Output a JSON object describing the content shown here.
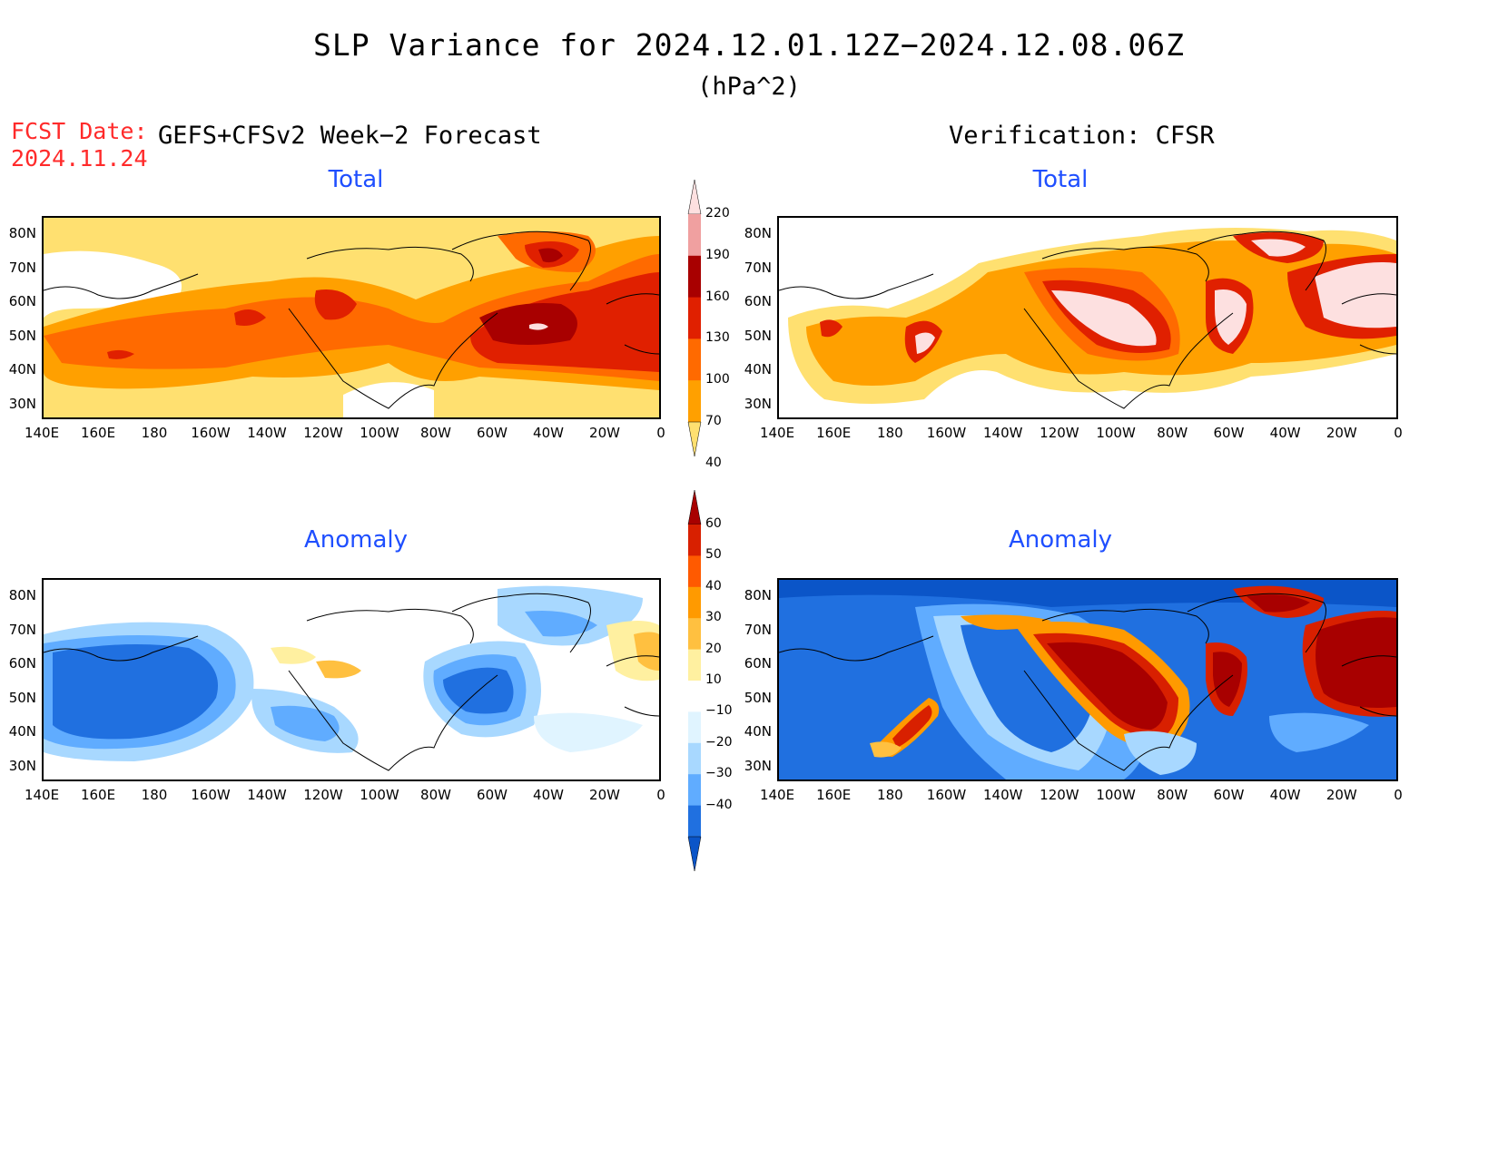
{
  "title": "SLP Variance for 2024.12.01.12Z−2024.12.08.06Z",
  "units": "(hPa^2)",
  "fcst_date_label": "FCST Date:",
  "fcst_date_value": "2024.11.24",
  "left_header": "GEFS+CFSv2 Week−2 Forecast",
  "right_header": "Verification: CFSR",
  "panels": {
    "top_left_title": "Total",
    "top_right_title": "Total",
    "bottom_left_title": "Anomaly",
    "bottom_right_title": "Anomaly"
  },
  "lat_labels": [
    "80N",
    "70N",
    "60N",
    "50N",
    "40N",
    "30N"
  ],
  "lon_labels": [
    "140E",
    "160E",
    "180",
    "160W",
    "140W",
    "120W",
    "100W",
    "80W",
    "60W",
    "40W",
    "20W",
    "0"
  ],
  "total_colorbar": {
    "labels": [
      "220",
      "190",
      "160",
      "130",
      "100",
      "70",
      "40"
    ],
    "colors": [
      "#fde0e0",
      "#f0a0a0",
      "#a80000",
      "#e02000",
      "#ff6a00",
      "#ffa000",
      "#ffe070"
    ]
  },
  "anomaly_colorbar": {
    "labels": [
      "60",
      "50",
      "40",
      "30",
      "20",
      "10",
      "−10",
      "−20",
      "−30",
      "−40"
    ],
    "colors": [
      "#a80000",
      "#d82000",
      "#ff5a00",
      "#ff9a00",
      "#ffc040",
      "#fff0a0",
      "#ffffff",
      "#e0f4ff",
      "#a8d8ff",
      "#60acff",
      "#2070e0",
      "#0b55c8"
    ]
  }
}
